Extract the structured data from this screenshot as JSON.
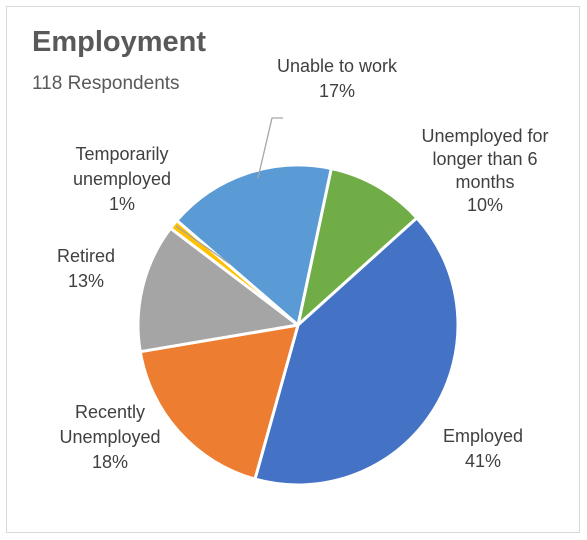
{
  "chart_data": {
    "type": "pie",
    "title": "Employment",
    "subtitle": "118 Respondents",
    "unit": "%",
    "slices": [
      {
        "name": "Unemployed for longer than 6 months",
        "label_lines": [
          "Unemployed for",
          "longer than 6",
          "months"
        ],
        "value": 10,
        "value_label": "10%",
        "color": "#70ad47"
      },
      {
        "name": "Employed",
        "label_lines": [
          "Employed"
        ],
        "value": 41,
        "value_label": "41%",
        "color": "#4472c4"
      },
      {
        "name": "Recently Unemployed",
        "label_lines": [
          "Recently",
          "Unemployed"
        ],
        "value": 18,
        "value_label": "18%",
        "color": "#ed7d31"
      },
      {
        "name": "Retired",
        "label_lines": [
          "Retired"
        ],
        "value": 13,
        "value_label": "13%",
        "color": "#a5a5a5"
      },
      {
        "name": "Temporarily unemployed",
        "label_lines": [
          "Temporarily",
          "unemployed"
        ],
        "value": 1,
        "value_label": "1%",
        "color": "#ffc000"
      },
      {
        "name": "Unable to work",
        "label_lines": [
          "Unable to work"
        ],
        "value": 17,
        "value_label": "17%",
        "color": "#5b9bd5"
      }
    ]
  }
}
